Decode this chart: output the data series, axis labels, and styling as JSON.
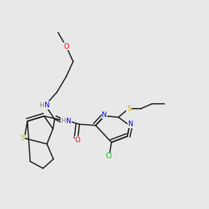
{
  "bg_color": "#e8e8e8",
  "bond_color": "#1a1a1a",
  "atom_colors": {
    "O": "#ff0000",
    "N": "#0000cc",
    "S": "#ccaa00",
    "Cl": "#00bb00",
    "H": "#777777",
    "C": "#1a1a1a"
  },
  "font_size": 7.0,
  "line_width": 1.2
}
